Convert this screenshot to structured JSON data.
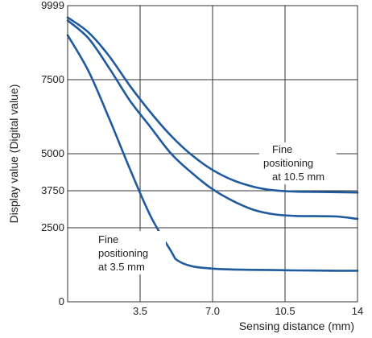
{
  "chart_data": {
    "type": "line",
    "xlabel": "Sensing distance (mm)",
    "ylabel": "Display value (Digital value)",
    "xlim": [
      0,
      14
    ],
    "ylim": [
      0,
      9999
    ],
    "xticks": [
      {
        "value": 3.5,
        "label": "3.5"
      },
      {
        "value": 7.0,
        "label": "7.0"
      },
      {
        "value": 10.5,
        "label": "10.5"
      },
      {
        "value": 14,
        "label": "14"
      }
    ],
    "yticks": [
      {
        "value": 0,
        "label": "0"
      },
      {
        "value": 2500,
        "label": "2500"
      },
      {
        "value": 3750,
        "label": "3750"
      },
      {
        "value": 5000,
        "label": "5000"
      },
      {
        "value": 7500,
        "label": "7500"
      },
      {
        "value": 9999,
        "label": "9999"
      }
    ],
    "grid": true,
    "series_color": "#1f5a9e",
    "series": [
      {
        "x": [
          0,
          1,
          2,
          3,
          4,
          5,
          6,
          7,
          8,
          9,
          10,
          11,
          12,
          13,
          14
        ],
        "y": [
          9600,
          9100,
          8300,
          7300,
          6400,
          5600,
          4950,
          4450,
          4100,
          3880,
          3760,
          3720,
          3710,
          3700,
          3690
        ]
      },
      {
        "x": [
          0,
          1,
          2,
          3,
          4,
          5,
          6,
          7,
          8,
          9,
          10,
          11,
          12,
          13,
          14
        ],
        "y": [
          9500,
          8900,
          7900,
          6800,
          5900,
          5000,
          4350,
          3800,
          3400,
          3100,
          2950,
          2900,
          2890,
          2880,
          2800
        ]
      },
      {
        "x": [
          0,
          1,
          2,
          3,
          4,
          5,
          5.3,
          6,
          7,
          8,
          9,
          10,
          11,
          12,
          13,
          14
        ],
        "y": [
          9000,
          7800,
          6200,
          4500,
          2900,
          1700,
          1400,
          1200,
          1120,
          1090,
          1080,
          1070,
          1060,
          1055,
          1050,
          1050
        ]
      }
    ],
    "annotations": [
      {
        "lines": [
          "Fine",
          "positioning",
          "at 10.5 mm"
        ]
      },
      {
        "lines": [
          "Fine",
          "positioning",
          "at 3.5 mm"
        ]
      }
    ]
  }
}
